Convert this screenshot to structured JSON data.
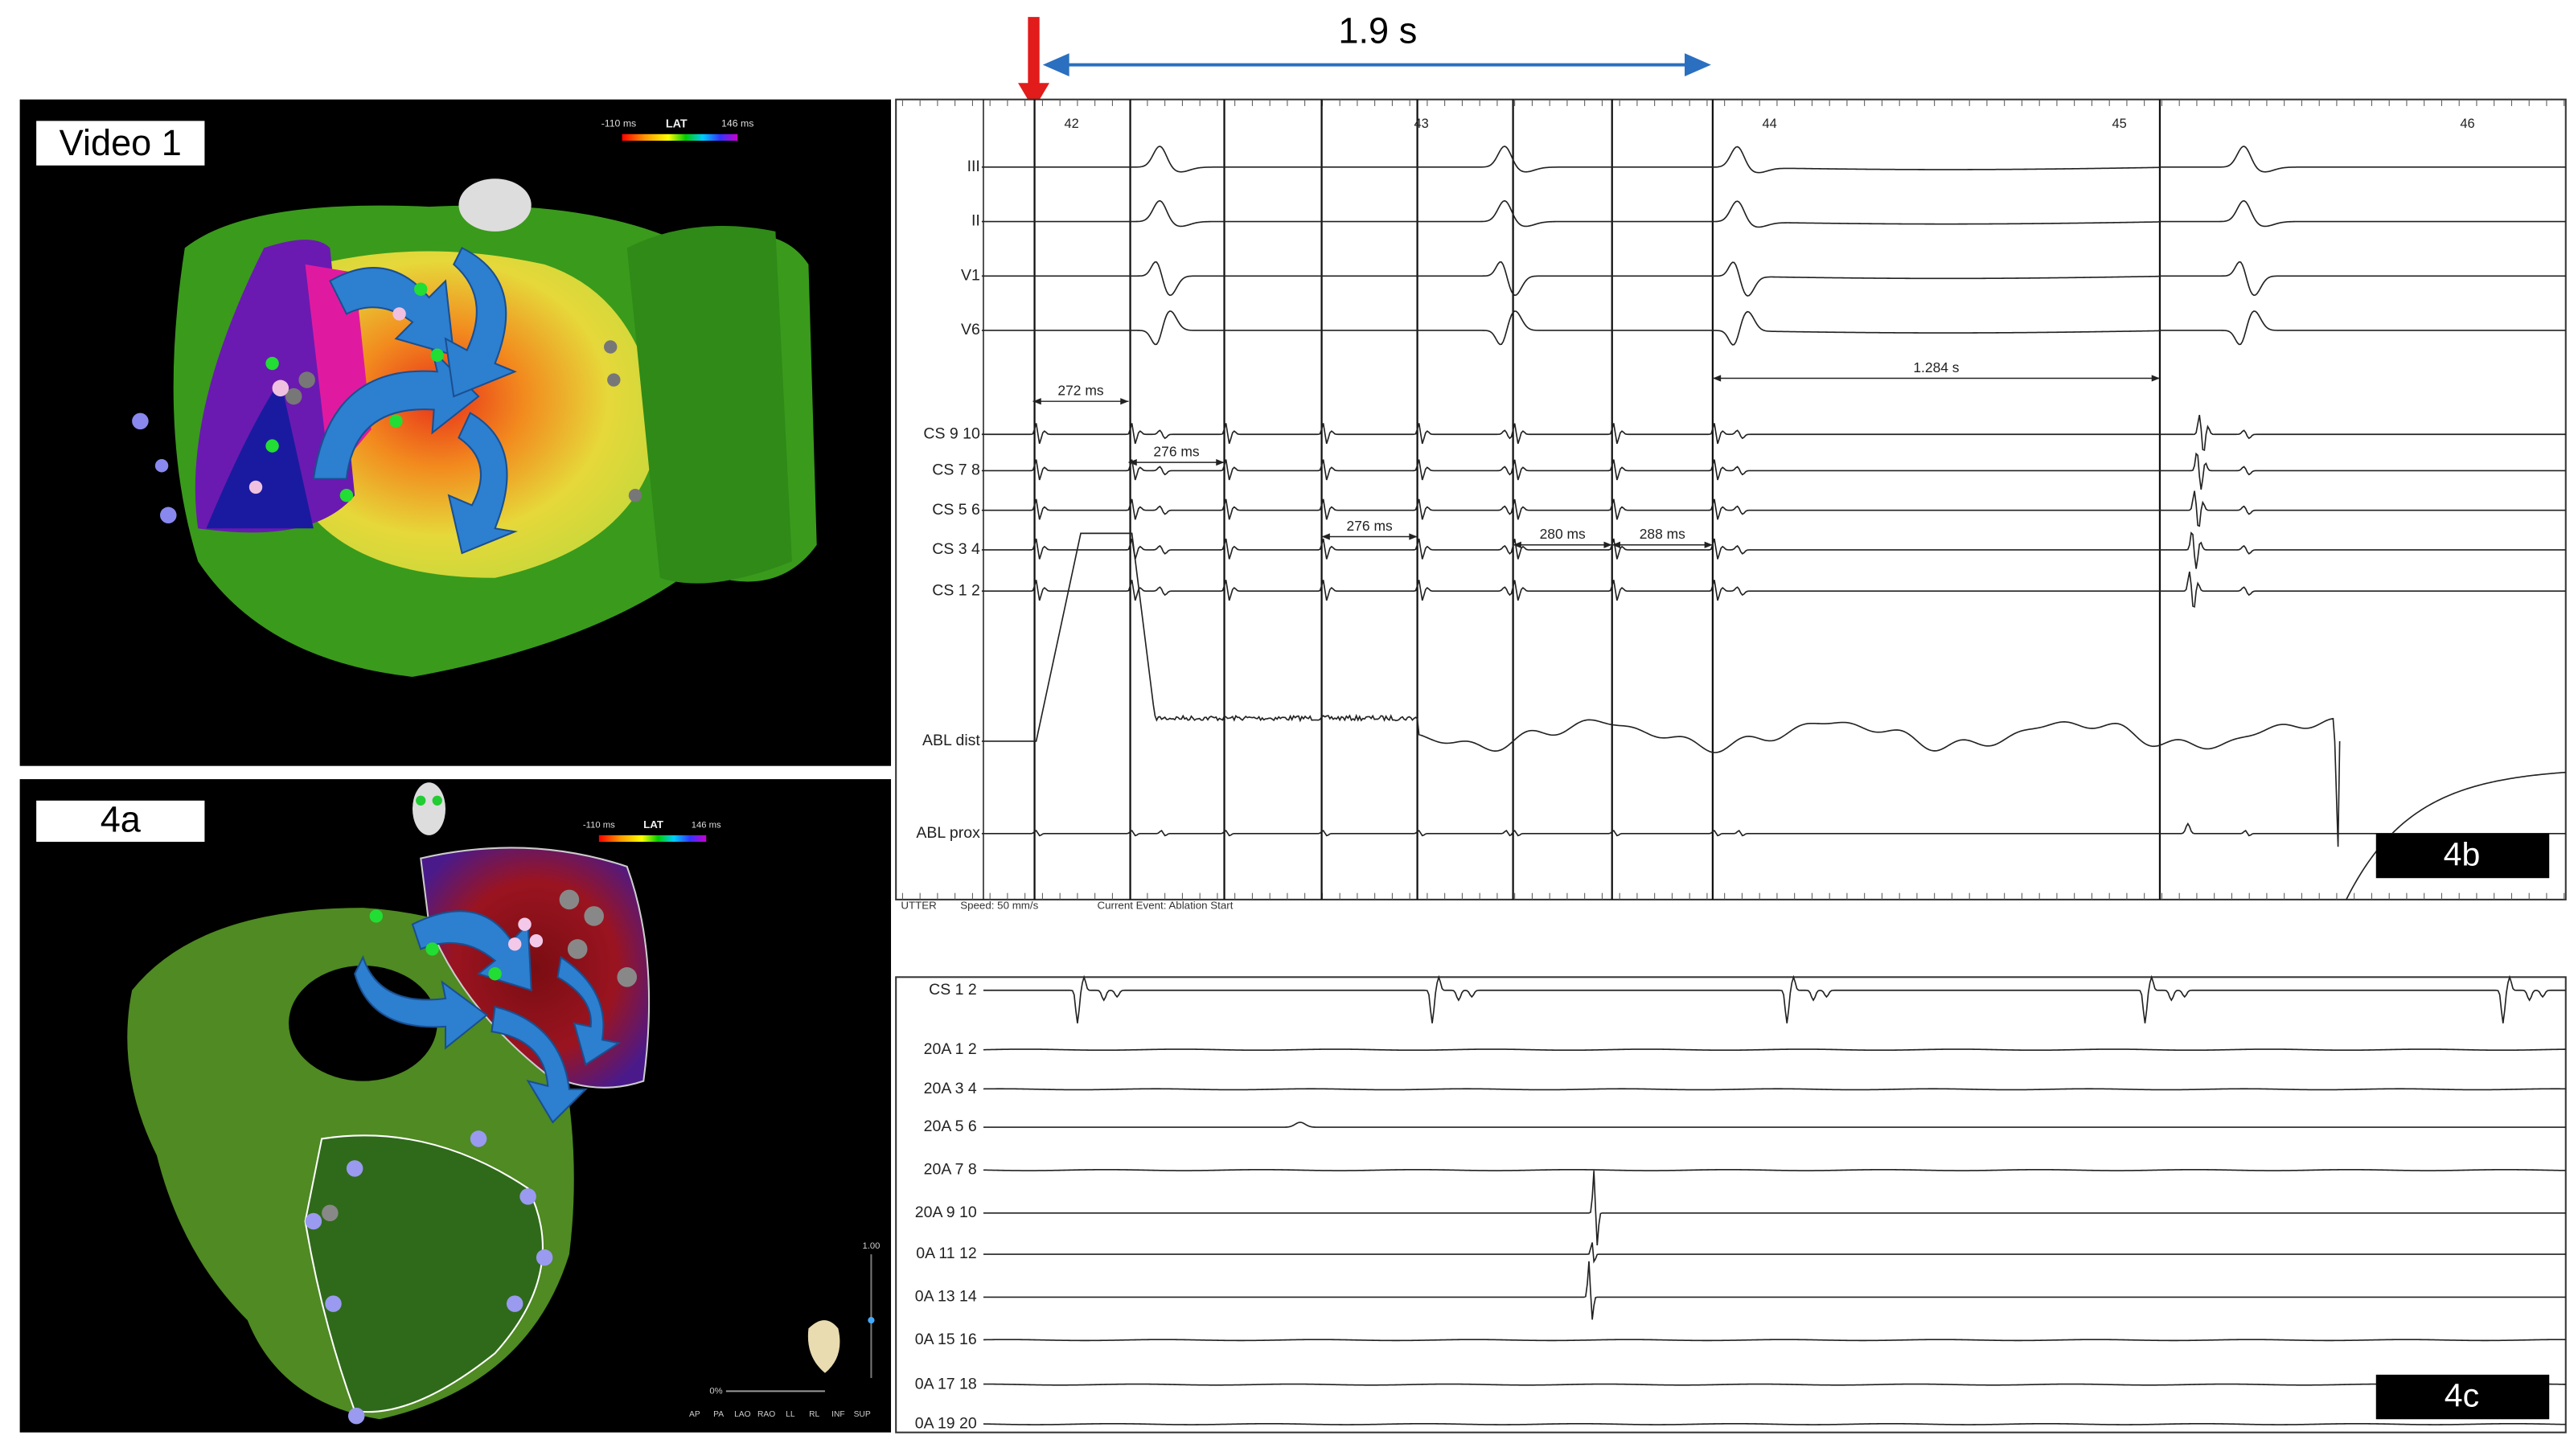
{
  "left_top": {
    "label": "Video 1",
    "scale": {
      "min": "-110 ms",
      "name": "LAT",
      "max": "146 ms"
    }
  },
  "left_bottom": {
    "label": "4a",
    "scale": {
      "min": "-110 ms",
      "name": "LAT",
      "max": "146 ms"
    },
    "slider": "1.00",
    "zoom": "0%",
    "views": [
      "AP",
      "PA",
      "LAO",
      "RAO",
      "LL",
      "RL",
      "INF",
      "SUP"
    ]
  },
  "annotation": {
    "interval": "1.9 s"
  },
  "panel_4b": {
    "label": "4b",
    "time_marks": [
      "42",
      "43",
      "44",
      "45",
      "46"
    ],
    "channels": [
      "III",
      "II",
      "V1",
      "V6",
      "CS 9 10",
      "CS 7 8",
      "CS 5 6",
      "CS 3 4",
      "CS 1 2",
      "ABL dist",
      "ABL prox"
    ],
    "intervals": [
      "272 ms",
      "276 ms",
      "276 ms",
      "280 ms",
      "288 ms",
      "1.284 s"
    ],
    "footer": [
      "UTTER",
      "Speed: 50 mm/s",
      "Current Event: Ablation Start"
    ]
  },
  "panel_4c": {
    "label": "4c",
    "channels": [
      "CS 1 2",
      "20A 1 2",
      "20A 3 4",
      "20A 5 6",
      "20A 7 8",
      "20A 9 10",
      "0A 11 12",
      "0A 13 14",
      "0A 15 16",
      "0A 17 18",
      "0A 19 20"
    ]
  }
}
